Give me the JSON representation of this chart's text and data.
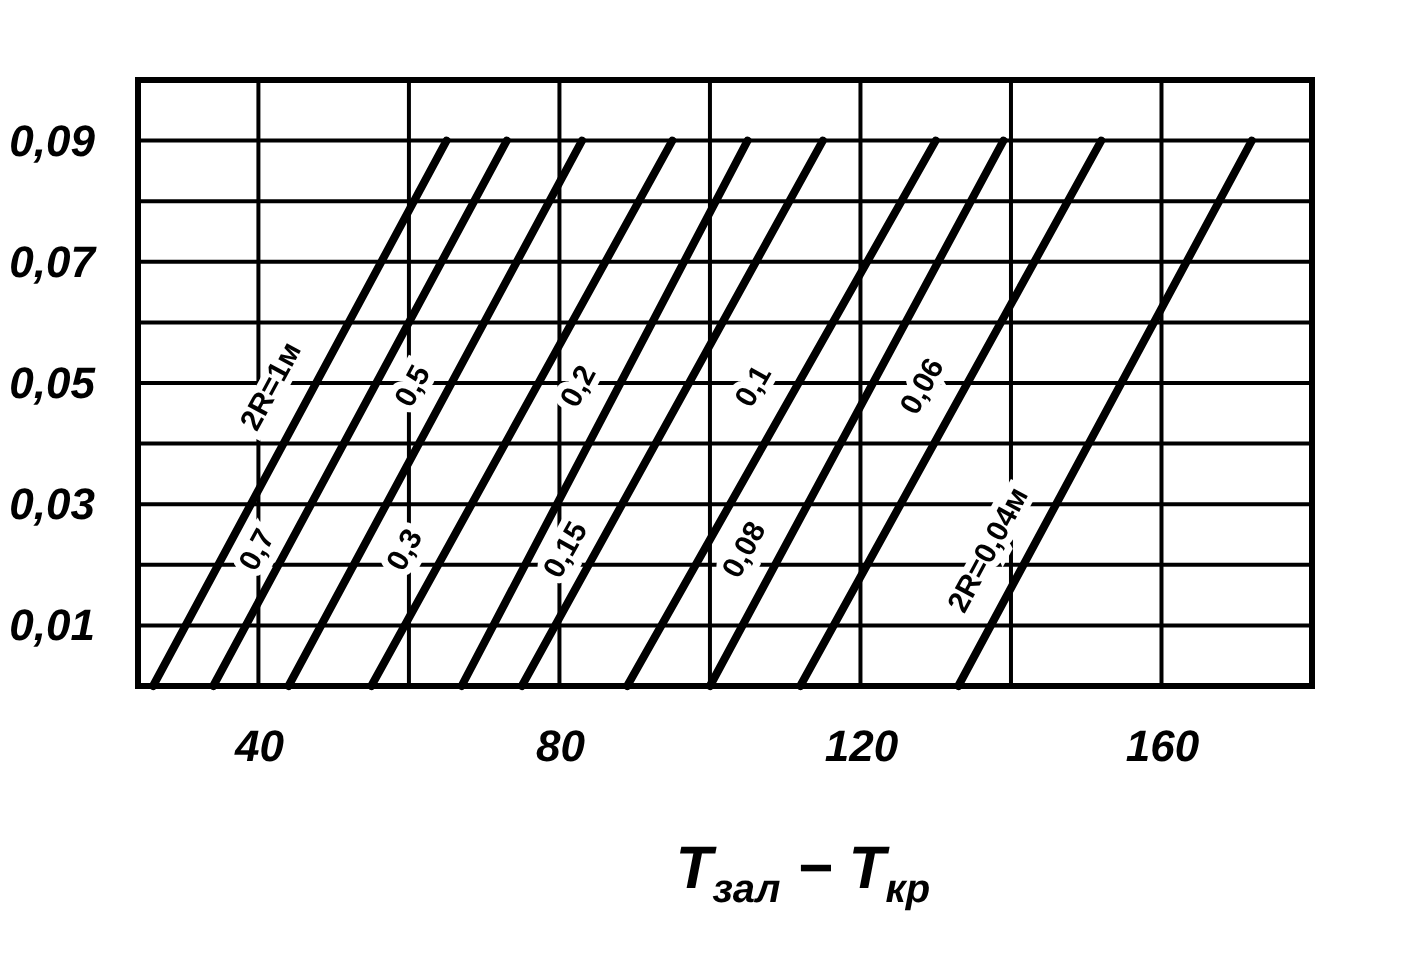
{
  "chart_data": {
    "type": "line",
    "xlabel": "T$_{зал}$ − T$_{кр}$",
    "xlim": [
      24,
      180
    ],
    "xticks": [
      40,
      {
        "value": 60,
        "label": null
      },
      80,
      {
        "value": 100,
        "label": null
      },
      120,
      {
        "value": 140,
        "label": null
      },
      160
    ],
    "ylim": [
      0,
      0.1
    ],
    "yticks": [
      {
        "value": 0.01,
        "label": "0,01"
      },
      {
        "value": 0.02,
        "label": null
      },
      {
        "value": 0.03,
        "label": "0,03"
      },
      {
        "value": 0.04,
        "label": null
      },
      {
        "value": 0.05,
        "label": "0,05"
      },
      {
        "value": 0.06,
        "label": null
      },
      {
        "value": 0.07,
        "label": "0,07"
      },
      {
        "value": 0.08,
        "label": null
      },
      {
        "value": 0.09,
        "label": "0,09"
      }
    ],
    "grid": true,
    "legend": false,
    "marker": "none",
    "line_style": "solid",
    "series": [
      {
        "name": "2R=1м",
        "color": "#000000",
        "x": [
          26,
          65
        ],
        "values": [
          0,
          0.09
        ]
      },
      {
        "name": "0,7",
        "color": "#000000",
        "x": [
          34,
          73
        ],
        "values": [
          0,
          0.09
        ]
      },
      {
        "name": "0,5",
        "color": "#000000",
        "x": [
          44,
          83
        ],
        "values": [
          0,
          0.09
        ]
      },
      {
        "name": "0,3",
        "color": "#000000",
        "x": [
          55,
          95
        ],
        "values": [
          0,
          0.09
        ]
      },
      {
        "name": "0,2",
        "color": "#000000",
        "x": [
          67,
          105
        ],
        "values": [
          0,
          0.09
        ]
      },
      {
        "name": "0,15",
        "color": "#000000",
        "x": [
          75,
          115
        ],
        "values": [
          0,
          0.09
        ]
      },
      {
        "name": "0,1",
        "color": "#000000",
        "x": [
          89,
          130
        ],
        "values": [
          0,
          0.09
        ]
      },
      {
        "name": "0,08",
        "color": "#000000",
        "x": [
          100,
          139
        ],
        "values": [
          0,
          0.09
        ]
      },
      {
        "name": "0,06",
        "color": "#000000",
        "x": [
          112,
          152
        ],
        "values": [
          0,
          0.09
        ]
      },
      {
        "name": "2R=0,04м",
        "color": "#000000",
        "x": [
          133,
          172
        ],
        "values": [
          0,
          0.09
        ]
      }
    ]
  }
}
